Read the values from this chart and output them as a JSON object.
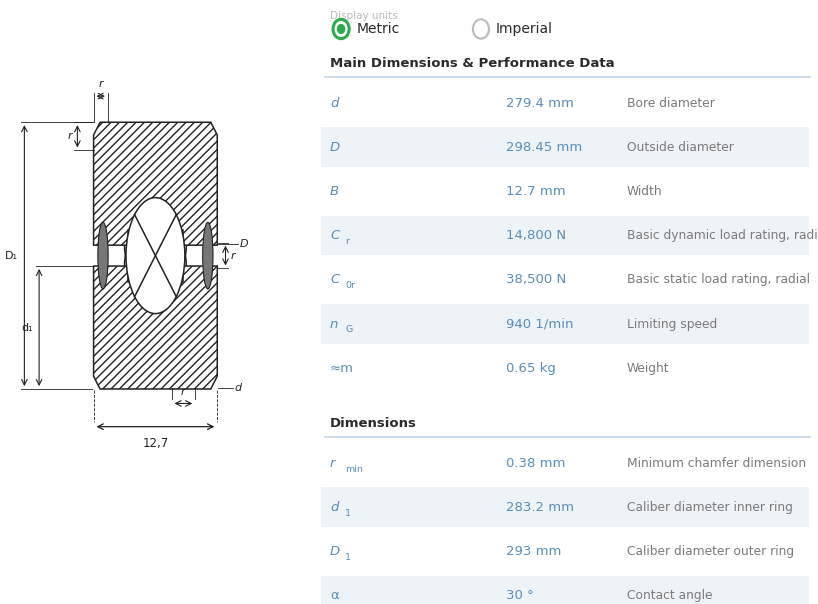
{
  "bg_color": "#ffffff",
  "display_units_label": "Display units",
  "metric_label": "Metric",
  "imperial_label": "Imperial",
  "section1_title": "Main Dimensions & Performance Data",
  "section2_title": "Dimensions",
  "table1": [
    {
      "sym_main": "d",
      "sym_sub": "",
      "value": "279.4 mm",
      "description": "Bore diameter",
      "shaded": false
    },
    {
      "sym_main": "D",
      "sym_sub": "",
      "value": "298.45 mm",
      "description": "Outside diameter",
      "shaded": true
    },
    {
      "sym_main": "B",
      "sym_sub": "",
      "value": "12.7 mm",
      "description": "Width",
      "shaded": false
    },
    {
      "sym_main": "C",
      "sym_sub": "r",
      "value": "14,800 N",
      "description": "Basic dynamic load rating, radial",
      "shaded": true
    },
    {
      "sym_main": "C",
      "sym_sub": "0r",
      "value": "38,500 N",
      "description": "Basic static load rating, radial",
      "shaded": false
    },
    {
      "sym_main": "n",
      "sym_sub": "G",
      "value": "940 1/min",
      "description": "Limiting speed",
      "shaded": true
    },
    {
      "sym_main": "≈m",
      "sym_sub": "",
      "value": "0.65 kg",
      "description": "Weight",
      "shaded": false
    }
  ],
  "table2": [
    {
      "sym_main": "r",
      "sym_sub": "min",
      "value": "0.38 mm",
      "description": "Minimum chamfer dimension",
      "shaded": false
    },
    {
      "sym_main": "d",
      "sym_sub": "1",
      "value": "283.2 mm",
      "description": "Caliber diameter inner ring",
      "shaded": true
    },
    {
      "sym_main": "D",
      "sym_sub": "1",
      "value": "293 mm",
      "description": "Caliber diameter outer ring",
      "shaded": false
    },
    {
      "sym_main": "α",
      "sym_sub": "",
      "value": "30 °",
      "description": "Contact angle",
      "shaded": true
    }
  ],
  "symbol_color": "#5b8db8",
  "value_color": "#5b8db8",
  "desc_color": "#7a7a7a",
  "shaded_color": "#eef3f7",
  "line_color": "#c5d5e5",
  "section_color": "#2a2a2a",
  "drawing_line_color": "#222222"
}
